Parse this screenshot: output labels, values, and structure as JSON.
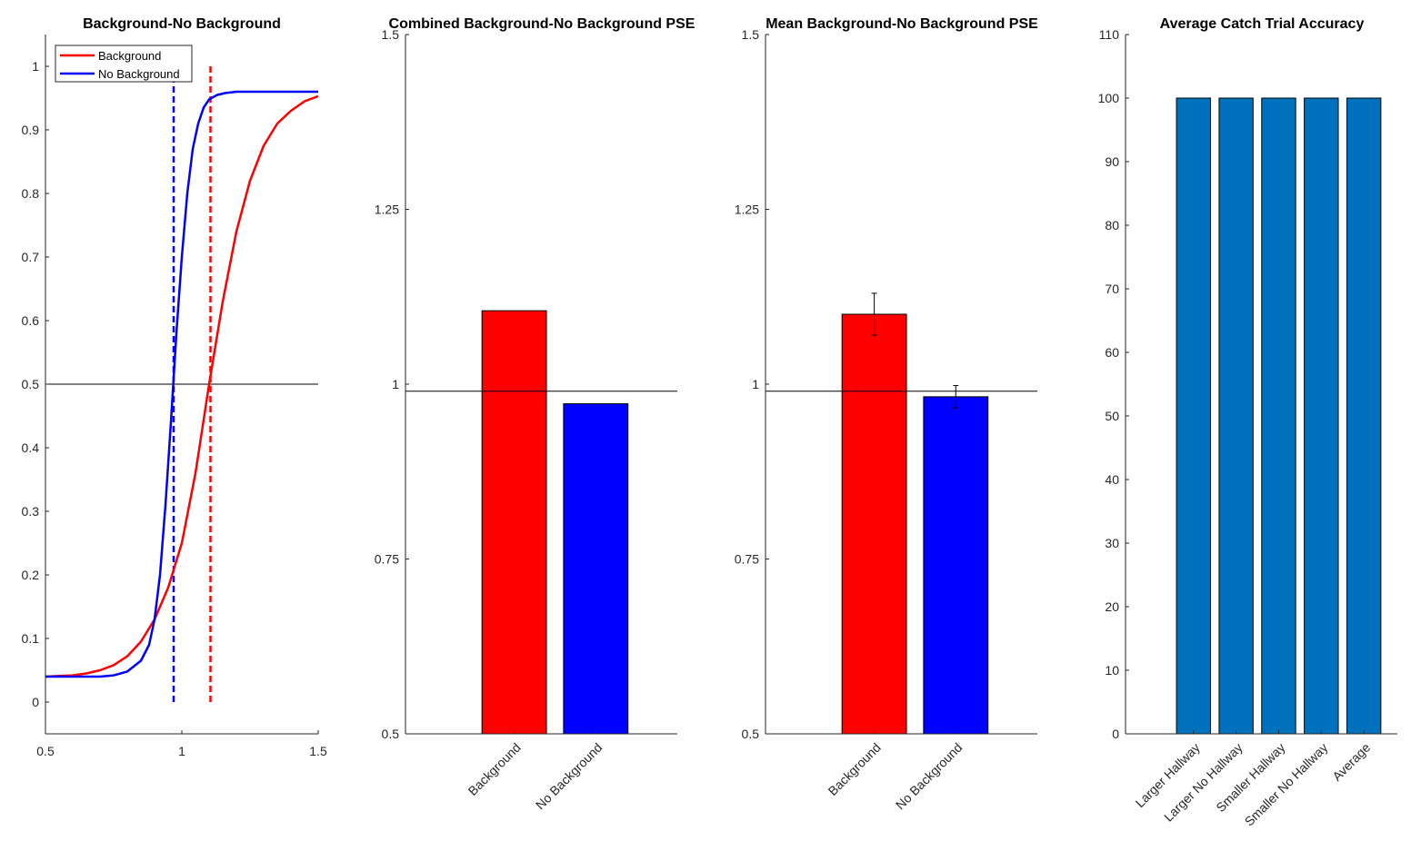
{
  "chart_data": [
    {
      "type": "line",
      "title": "Background-No Background",
      "xlim": [
        0.5,
        1.5
      ],
      "ylim": [
        -0.05,
        1.05
      ],
      "xticks": [
        0.5,
        1,
        1.5
      ],
      "xtick_labels": [
        "0.5",
        "1",
        "1.5"
      ],
      "yticks": [
        0,
        0.1,
        0.2,
        0.3,
        0.4,
        0.5,
        0.6,
        0.7,
        0.8,
        0.9,
        1
      ],
      "ytick_labels": [
        "0",
        "0.1",
        "0.2",
        "0.3",
        "0.4",
        "0.5",
        "0.6",
        "0.7",
        "0.8",
        "0.9",
        "1"
      ],
      "legend_position": "top-left",
      "series": [
        {
          "name": "Background",
          "color": "#ff0000",
          "x": [
            0.5,
            0.55,
            0.6,
            0.65,
            0.7,
            0.75,
            0.8,
            0.85,
            0.9,
            0.95,
            1.0,
            1.05,
            1.1,
            1.15,
            1.2,
            1.25,
            1.3,
            1.35,
            1.4,
            1.45,
            1.5
          ],
          "y": [
            0.04,
            0.041,
            0.042,
            0.045,
            0.05,
            0.058,
            0.072,
            0.095,
            0.13,
            0.18,
            0.25,
            0.36,
            0.5,
            0.63,
            0.74,
            0.82,
            0.875,
            0.91,
            0.93,
            0.945,
            0.953
          ]
        },
        {
          "name": "No Background",
          "color": "#0000ff",
          "x": [
            0.5,
            0.6,
            0.7,
            0.75,
            0.8,
            0.85,
            0.88,
            0.9,
            0.92,
            0.94,
            0.96,
            0.98,
            1.0,
            1.02,
            1.04,
            1.06,
            1.08,
            1.1,
            1.13,
            1.16,
            1.2,
            1.3,
            1.5
          ],
          "y": [
            0.04,
            0.04,
            0.04,
            0.042,
            0.048,
            0.065,
            0.09,
            0.13,
            0.2,
            0.31,
            0.44,
            0.58,
            0.7,
            0.8,
            0.87,
            0.91,
            0.935,
            0.948,
            0.955,
            0.958,
            0.96,
            0.96,
            0.96
          ]
        }
      ],
      "reference_line_y": 0.5,
      "vertical_lines": [
        {
          "x": 0.97,
          "y_range": [
            0,
            1
          ],
          "color": "#0000ff",
          "style": "dashed"
        },
        {
          "x": 1.105,
          "y_range": [
            0,
            1
          ],
          "color": "#ff0000",
          "style": "dashed"
        }
      ]
    },
    {
      "type": "bar",
      "title": "Combined Background-No Background PSE",
      "categories": [
        "Background",
        "No Background"
      ],
      "values": [
        1.105,
        0.972
      ],
      "colors": [
        "#ff0000",
        "#0000ff"
      ],
      "ylim": [
        0.5,
        1.5
      ],
      "yticks": [
        0.5,
        0.75,
        1,
        1.25,
        1.5
      ],
      "ytick_labels": [
        "0.5",
        "0.75",
        "1",
        "1.25",
        "1.5"
      ],
      "reference_line_y": 0.99
    },
    {
      "type": "bar",
      "title": "Mean Background-No Background PSE",
      "categories": [
        "Background",
        "No Background"
      ],
      "values": [
        1.1,
        0.982
      ],
      "errors": [
        0.03,
        0.016
      ],
      "colors": [
        "#ff0000",
        "#0000ff"
      ],
      "ylim": [
        0.5,
        1.5
      ],
      "yticks": [
        0.5,
        0.75,
        1,
        1.25,
        1.5
      ],
      "ytick_labels": [
        "0.5",
        "0.75",
        "1",
        "1.25",
        "1.5"
      ],
      "reference_line_y": 0.99
    },
    {
      "type": "bar",
      "title": "Average Catch Trial Accuracy",
      "categories": [
        "Larger Hallway",
        "Larger No Hallway",
        "Smaller Hallway",
        "Smaller No Hallway",
        "Average"
      ],
      "values": [
        100,
        100,
        100,
        100,
        100
      ],
      "errors": [
        0,
        0,
        0,
        0,
        0
      ],
      "colors": [
        "#0072bd",
        "#0072bd",
        "#0072bd",
        "#0072bd",
        "#0072bd"
      ],
      "ylim": [
        0,
        110
      ],
      "yticks": [
        0,
        10,
        20,
        30,
        40,
        50,
        60,
        70,
        80,
        90,
        100,
        110
      ],
      "ytick_labels": [
        "0",
        "10",
        "20",
        "30",
        "40",
        "50",
        "60",
        "70",
        "80",
        "90",
        "100",
        "110"
      ]
    }
  ]
}
